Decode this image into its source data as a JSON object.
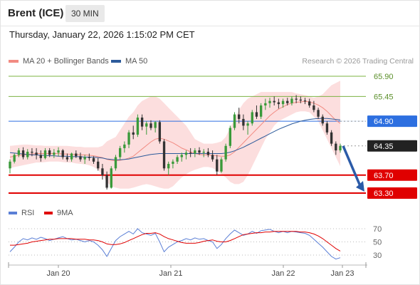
{
  "header": {
    "title": "Brent (ICE)",
    "timeframe": "30 MIN"
  },
  "timestamp": "Thursday, January 22, 2026 1:15:02 PM CET",
  "legend": {
    "ma20": {
      "label": "MA 20 + Bollinger Bands",
      "color": "#f28b82"
    },
    "ma50": {
      "label": "MA 50",
      "color": "#2d5b9b"
    }
  },
  "credit": "Research © 2026 Trading Central",
  "rsi_legend": {
    "rsi": {
      "label": "RSI",
      "color": "#5b7fd6"
    },
    "ma9": {
      "label": "9MA",
      "color": "#e00000"
    }
  },
  "chart_data": [
    {
      "type": "candlestick",
      "x_labels": [
        "Jan 20",
        "Jan 21",
        "Jan 22",
        "Jan 23"
      ],
      "y_ticks": [
        "65.90",
        "65.45",
        "64.90",
        "64.35",
        "63.70",
        "63.30"
      ],
      "levels": [
        {
          "label": "65.90",
          "value": 65.9,
          "kind": "resistance",
          "color": "#7cb342"
        },
        {
          "label": "65.45",
          "value": 65.45,
          "kind": "resistance",
          "color": "#7cb342"
        },
        {
          "label": "64.90",
          "value": 64.9,
          "kind": "pivot",
          "color": "#2d6fe0"
        },
        {
          "label": "64.35",
          "value": 64.35,
          "kind": "last",
          "color": "#222222"
        },
        {
          "label": "63.70",
          "value": 63.7,
          "kind": "support",
          "color": "#e00000"
        },
        {
          "label": "63.30",
          "value": 63.3,
          "kind": "support",
          "color": "#e00000"
        }
      ],
      "ylim": [
        63.28,
        66.0
      ],
      "candles": [
        [
          63.85,
          64.05,
          63.74,
          64.0
        ],
        [
          64.0,
          64.18,
          63.96,
          64.15
        ],
        [
          64.15,
          64.3,
          64.1,
          64.25
        ],
        [
          64.25,
          64.32,
          64.05,
          64.1
        ],
        [
          64.1,
          64.28,
          64.05,
          64.22
        ],
        [
          64.22,
          64.3,
          64.12,
          64.2
        ],
        [
          64.2,
          64.3,
          64.05,
          64.15
        ],
        [
          64.15,
          64.25,
          64.0,
          64.08
        ],
        [
          64.08,
          64.3,
          64.05,
          64.25
        ],
        [
          64.25,
          64.3,
          64.1,
          64.15
        ],
        [
          64.15,
          64.28,
          64.08,
          64.2
        ],
        [
          64.2,
          64.32,
          64.12,
          64.25
        ],
        [
          64.25,
          64.28,
          64.05,
          64.1
        ],
        [
          64.1,
          64.18,
          64.0,
          64.05
        ],
        [
          64.05,
          64.2,
          64.0,
          64.18
        ],
        [
          64.18,
          64.25,
          64.08,
          64.12
        ],
        [
          64.12,
          64.2,
          64.0,
          64.05
        ],
        [
          64.05,
          64.15,
          63.95,
          64.1
        ],
        [
          64.1,
          64.18,
          64.02,
          64.08
        ],
        [
          64.08,
          64.12,
          63.95,
          64.0
        ],
        [
          64.0,
          64.08,
          63.8,
          63.85
        ],
        [
          63.85,
          63.95,
          63.6,
          63.7
        ],
        [
          63.7,
          63.78,
          63.38,
          63.42
        ],
        [
          63.42,
          63.9,
          63.4,
          63.85
        ],
        [
          63.85,
          64.15,
          63.8,
          64.1
        ],
        [
          64.1,
          64.35,
          64.05,
          64.3
        ],
        [
          64.3,
          64.45,
          64.2,
          64.38
        ],
        [
          64.38,
          64.7,
          64.3,
          64.65
        ],
        [
          64.65,
          64.8,
          64.5,
          64.6
        ],
        [
          64.6,
          65.05,
          64.55,
          64.98
        ],
        [
          64.98,
          65.05,
          64.7,
          64.78
        ],
        [
          64.78,
          64.9,
          64.6,
          64.85
        ],
        [
          64.85,
          64.92,
          64.7,
          64.75
        ],
        [
          64.75,
          64.9,
          64.65,
          64.88
        ],
        [
          64.88,
          64.92,
          64.4,
          64.45
        ],
        [
          64.45,
          64.5,
          63.8,
          63.85
        ],
        [
          63.85,
          64.0,
          63.7,
          63.95
        ],
        [
          63.95,
          64.05,
          63.85,
          64.0
        ],
        [
          64.0,
          64.15,
          63.95,
          64.1
        ],
        [
          64.1,
          64.2,
          64.0,
          64.15
        ],
        [
          64.15,
          64.25,
          64.05,
          64.2
        ],
        [
          64.2,
          64.3,
          64.1,
          64.18
        ],
        [
          64.18,
          64.3,
          64.1,
          64.25
        ],
        [
          64.25,
          64.32,
          64.15,
          64.2
        ],
        [
          64.2,
          64.28,
          64.1,
          64.22
        ],
        [
          64.22,
          64.3,
          64.1,
          64.15
        ],
        [
          64.15,
          64.25,
          64.0,
          64.05
        ],
        [
          64.05,
          64.15,
          63.7,
          63.78
        ],
        [
          63.78,
          64.1,
          63.75,
          64.05
        ],
        [
          64.05,
          64.4,
          64.0,
          64.35
        ],
        [
          64.35,
          64.8,
          64.3,
          64.75
        ],
        [
          64.75,
          65.1,
          64.7,
          65.05
        ],
        [
          65.05,
          65.2,
          64.85,
          64.95
        ],
        [
          64.95,
          65.05,
          64.7,
          64.8
        ],
        [
          64.8,
          64.9,
          64.6,
          64.85
        ],
        [
          64.85,
          65.15,
          64.8,
          65.1
        ],
        [
          65.1,
          65.25,
          64.95,
          65.0
        ],
        [
          65.0,
          65.3,
          64.95,
          65.25
        ],
        [
          65.25,
          65.4,
          65.15,
          65.3
        ],
        [
          65.3,
          65.42,
          65.2,
          65.35
        ],
        [
          65.35,
          65.45,
          65.25,
          65.32
        ],
        [
          65.32,
          65.4,
          65.18,
          65.28
        ],
        [
          65.28,
          65.4,
          65.2,
          65.35
        ],
        [
          65.35,
          65.42,
          65.25,
          65.3
        ],
        [
          65.3,
          65.45,
          65.25,
          65.4
        ],
        [
          65.4,
          65.48,
          65.3,
          65.38
        ],
        [
          65.38,
          65.45,
          65.3,
          65.36
        ],
        [
          65.36,
          65.42,
          65.28,
          65.34
        ],
        [
          65.34,
          65.4,
          65.2,
          65.25
        ],
        [
          65.25,
          65.35,
          65.1,
          65.15
        ],
        [
          65.15,
          65.2,
          64.95,
          65.0
        ],
        [
          65.0,
          65.05,
          64.8,
          64.85
        ],
        [
          64.85,
          64.9,
          64.6,
          64.65
        ],
        [
          64.65,
          64.7,
          64.35,
          64.4
        ],
        [
          64.4,
          64.45,
          64.15,
          64.25
        ],
        [
          64.25,
          64.4,
          64.2,
          64.35
        ]
      ],
      "ma20": [
        64.1,
        64.12,
        64.14,
        64.15,
        64.16,
        64.17,
        64.18,
        64.18,
        64.18,
        64.18,
        64.18,
        64.18,
        64.17,
        64.17,
        64.16,
        64.16,
        64.15,
        64.15,
        64.14,
        64.13,
        64.11,
        64.09,
        64.05,
        64.03,
        64.02,
        64.03,
        64.05,
        64.08,
        64.12,
        64.2,
        64.28,
        64.36,
        64.44,
        64.5,
        64.52,
        64.5,
        64.46,
        64.42,
        64.36,
        64.3,
        64.26,
        64.22,
        64.18,
        64.16,
        64.15,
        64.15,
        64.14,
        64.13,
        64.12,
        64.12,
        64.15,
        64.22,
        64.32,
        64.42,
        64.52,
        64.62,
        64.72,
        64.82,
        64.92,
        65.02,
        65.1,
        65.17,
        65.22,
        65.27,
        65.3,
        65.32,
        65.33,
        65.34,
        65.33,
        65.3,
        65.26,
        65.2,
        65.12,
        65.02,
        64.92,
        64.85
      ],
      "bb_upper": [
        64.35,
        64.36,
        64.37,
        64.38,
        64.38,
        64.37,
        64.36,
        64.36,
        64.35,
        64.35,
        64.35,
        64.35,
        64.35,
        64.35,
        64.34,
        64.33,
        64.33,
        64.32,
        64.32,
        64.32,
        64.32,
        64.35,
        64.45,
        64.5,
        64.55,
        64.7,
        64.85,
        65.0,
        65.1,
        65.25,
        65.35,
        65.4,
        65.45,
        65.45,
        65.4,
        65.3,
        65.2,
        65.1,
        65.0,
        64.9,
        64.8,
        64.65,
        64.5,
        64.45,
        64.4,
        64.4,
        64.4,
        64.42,
        64.45,
        64.55,
        64.75,
        64.95,
        65.15,
        65.3,
        65.4,
        65.45,
        65.5,
        65.55,
        65.55,
        65.55,
        65.55,
        65.55,
        65.55,
        65.55,
        65.55,
        65.52,
        65.5,
        65.48,
        65.45,
        65.42,
        65.45,
        65.5,
        65.6,
        65.7,
        65.75,
        65.8
      ],
      "bb_lower": [
        63.85,
        63.88,
        63.9,
        63.92,
        63.94,
        63.96,
        63.98,
        63.98,
        63.99,
        64.0,
        64.0,
        64.0,
        63.99,
        63.98,
        63.98,
        63.96,
        63.95,
        63.94,
        63.92,
        63.88,
        63.82,
        63.7,
        63.55,
        63.45,
        63.42,
        63.4,
        63.4,
        63.4,
        63.42,
        63.45,
        63.48,
        63.5,
        63.48,
        63.45,
        63.42,
        63.4,
        63.4,
        63.45,
        63.55,
        63.65,
        63.72,
        63.78,
        63.82,
        63.85,
        63.88,
        63.88,
        63.86,
        63.8,
        63.72,
        63.65,
        63.55,
        63.5,
        63.5,
        63.55,
        63.7,
        63.9,
        64.1,
        64.3,
        64.5,
        64.65,
        64.8,
        64.9,
        64.95,
        65.0,
        65.05,
        65.1,
        65.12,
        65.12,
        65.1,
        65.0,
        64.9,
        64.7,
        64.5,
        64.3,
        64.1,
        63.9
      ],
      "ma50": [
        64.2,
        64.19,
        64.18,
        64.17,
        64.16,
        64.15,
        64.15,
        64.14,
        64.14,
        64.13,
        64.13,
        64.12,
        64.12,
        64.12,
        64.11,
        64.11,
        64.11,
        64.1,
        64.1,
        64.1,
        64.09,
        64.08,
        64.06,
        64.05,
        64.04,
        64.04,
        64.05,
        64.06,
        64.08,
        64.1,
        64.12,
        64.14,
        64.16,
        64.17,
        64.18,
        64.18,
        64.18,
        64.18,
        64.18,
        64.18,
        64.18,
        64.18,
        64.18,
        64.18,
        64.18,
        64.18,
        64.18,
        64.18,
        64.18,
        64.19,
        64.21,
        64.24,
        64.28,
        64.32,
        64.37,
        64.42,
        64.47,
        64.52,
        64.57,
        64.62,
        64.67,
        64.72,
        64.76,
        64.8,
        64.84,
        64.87,
        64.9,
        64.92,
        64.94,
        64.95,
        64.96,
        64.96,
        64.96,
        64.95,
        64.94,
        64.93
      ],
      "projection": {
        "from": 64.35,
        "to": 63.3
      }
    },
    {
      "type": "line",
      "title": "RSI",
      "y_ticks": [
        70,
        50,
        30
      ],
      "ylim": [
        10,
        85
      ],
      "series": [
        {
          "name": "RSI",
          "values": [
            35,
            42,
            50,
            55,
            53,
            56,
            54,
            57,
            55,
            52,
            54,
            56,
            58,
            55,
            53,
            54,
            52,
            50,
            52,
            50,
            45,
            38,
            28,
            40,
            52,
            58,
            62,
            66,
            62,
            70,
            64,
            62,
            60,
            63,
            50,
            35,
            42,
            46,
            50,
            52,
            55,
            53,
            56,
            54,
            55,
            52,
            50,
            40,
            46,
            55,
            62,
            68,
            64,
            60,
            62,
            66,
            63,
            67,
            68,
            69,
            66,
            64,
            66,
            64,
            66,
            65,
            64,
            63,
            60,
            54,
            48,
            42,
            35,
            28,
            24,
            26
          ]
        },
        {
          "name": "9MA",
          "values": [
            45,
            45,
            46,
            47,
            48,
            50,
            51,
            52,
            53,
            54,
            54,
            55,
            55,
            55,
            55,
            54,
            54,
            54,
            53,
            53,
            52,
            50,
            47,
            46,
            46,
            47,
            49,
            52,
            55,
            58,
            61,
            63,
            63,
            64,
            62,
            58,
            55,
            53,
            51,
            49,
            48,
            48,
            48,
            49,
            51,
            52,
            53,
            51,
            50,
            50,
            52,
            55,
            58,
            61,
            62,
            63,
            64,
            64,
            65,
            65,
            66,
            66,
            66,
            66,
            66,
            66,
            65,
            65,
            64,
            62,
            59,
            55,
            50,
            45,
            40,
            36
          ]
        }
      ]
    }
  ]
}
